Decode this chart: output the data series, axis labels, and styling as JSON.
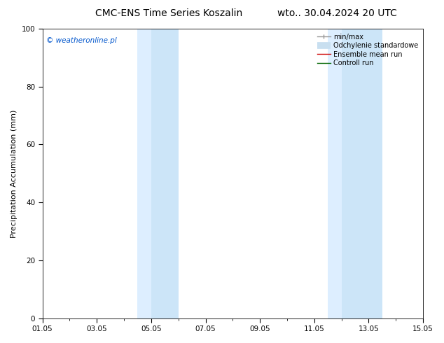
{
  "title_left": "CMC-ENS Time Series Koszalin",
  "title_right": "wto.. 30.04.2024 20 UTC",
  "ylabel": "Precipitation Accumulation (mm)",
  "ylim": [
    0,
    100
  ],
  "xlim": [
    0,
    14
  ],
  "xtick_labels": [
    "01.05",
    "03.05",
    "05.05",
    "07.05",
    "09.05",
    "11.05",
    "13.05",
    "15.05"
  ],
  "xtick_positions": [
    0,
    2,
    4,
    6,
    8,
    10,
    12,
    14
  ],
  "ytick_labels": [
    "0",
    "20",
    "40",
    "60",
    "80",
    "100"
  ],
  "ytick_positions": [
    0,
    20,
    40,
    60,
    80,
    100
  ],
  "shaded_regions": [
    {
      "xstart": 3.5,
      "xend": 4.0,
      "color": "#ddeeff"
    },
    {
      "xstart": 4.0,
      "xend": 5.0,
      "color": "#cce5f8"
    },
    {
      "xstart": 10.5,
      "xend": 11.0,
      "color": "#ddeeff"
    },
    {
      "xstart": 11.0,
      "xend": 12.5,
      "color": "#cce5f8"
    }
  ],
  "watermark_text": "© weatheronline.pl",
  "watermark_color": "#0055cc",
  "legend_items": [
    {
      "label": "min/max",
      "color": "#999999",
      "lw": 1.0
    },
    {
      "label": "Odchylenie standardowe",
      "color": "#c8dff0",
      "lw": 7
    },
    {
      "label": "Ensemble mean run",
      "color": "#cc0000",
      "lw": 1.0
    },
    {
      "label": "Controll run",
      "color": "#006600",
      "lw": 1.0
    }
  ],
  "background_color": "#ffffff",
  "title_fontsize": 10,
  "axis_fontsize": 8,
  "tick_fontsize": 7.5,
  "legend_fontsize": 7,
  "watermark_fontsize": 7.5
}
